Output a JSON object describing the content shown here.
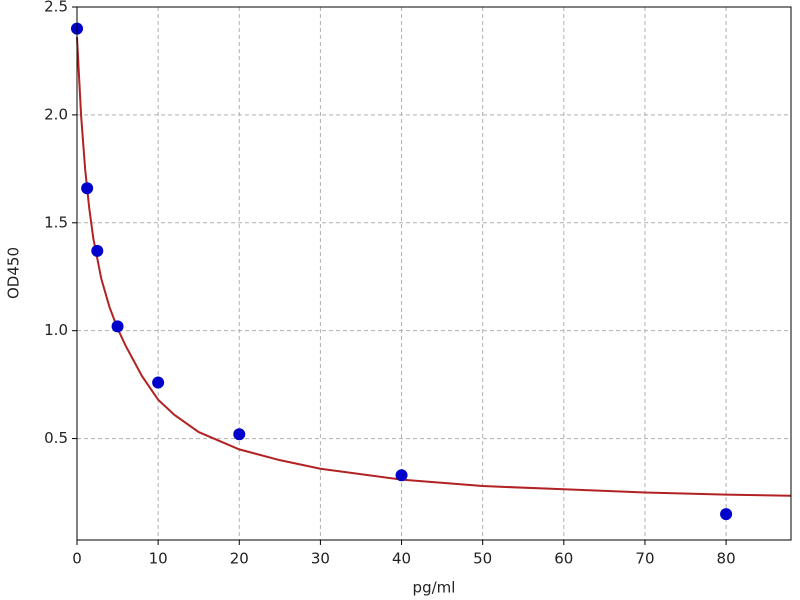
{
  "chart_data": {
    "type": "scatter",
    "x_label": "pg/ml",
    "y_label": "OD450",
    "xlim": [
      0,
      88
    ],
    "ylim": [
      0.03,
      2.5
    ],
    "xticks": [
      0,
      10,
      20,
      30,
      40,
      50,
      60,
      70,
      80
    ],
    "yticks": [
      0.5,
      {
        "value": 1,
        "label": "1.0"
      },
      1.5,
      {
        "value": 2,
        "label": "2.0"
      },
      2.5
    ],
    "grid": true,
    "series": [
      {
        "mode": "line",
        "color": "#b22222",
        "x": [
          0,
          0.5,
          1,
          1.5,
          2,
          3,
          4,
          5,
          6,
          8,
          10,
          12,
          15,
          20,
          25,
          30,
          40,
          50,
          60,
          70,
          80,
          88
        ],
        "values": [
          2.36,
          2.0,
          1.75,
          1.57,
          1.43,
          1.24,
          1.11,
          1.01,
          0.93,
          0.79,
          0.68,
          0.61,
          0.53,
          0.45,
          0.4,
          0.36,
          0.31,
          0.28,
          0.265,
          0.25,
          0.24,
          0.235
        ]
      },
      {
        "mode": "markers",
        "color": "#0000cc",
        "x": [
          0,
          1.25,
          2.5,
          5,
          10,
          20,
          40,
          80
        ],
        "values": [
          2.4,
          1.66,
          1.37,
          1.02,
          0.76,
          0.52,
          0.33,
          0.15
        ]
      }
    ]
  }
}
